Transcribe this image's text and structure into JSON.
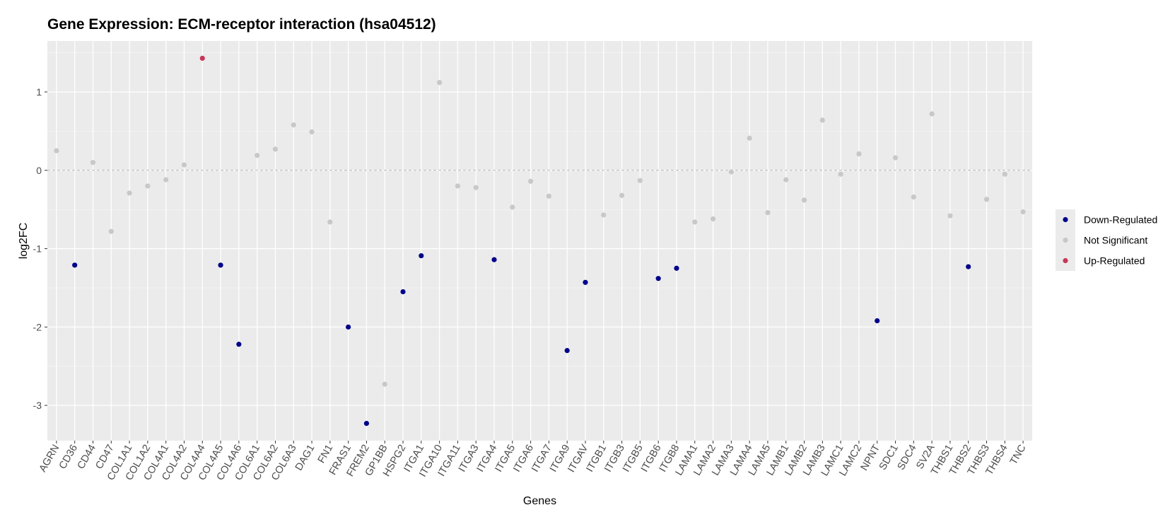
{
  "chart_data": {
    "type": "scatter",
    "title": "Gene Expression: ECM-receptor interaction (hsa04512)",
    "xlabel": "Genes",
    "ylabel": "log2FC",
    "ylim": [
      -3.45,
      1.65
    ],
    "yticks": [
      -3,
      -2,
      -1,
      0,
      1
    ],
    "grid": true,
    "legend_position": "right",
    "reference_line": 0,
    "colors": {
      "Down-Regulated": "#00008b",
      "Not Significant": "#c8c8c8",
      "Up-Regulated": "#c8365a"
    },
    "legend": [
      "Down-Regulated",
      "Not Significant",
      "Up-Regulated"
    ],
    "categories": [
      "AGRN",
      "CD36",
      "CD44",
      "CD47",
      "COL1A1",
      "COL1A2",
      "COL4A1",
      "COL4A2",
      "COL4A4",
      "COL4A5",
      "COL4A6",
      "COL6A1",
      "COL6A2",
      "COL6A3",
      "DAG1",
      "FN1",
      "FRAS1",
      "FREM2",
      "GP1BB",
      "HSPG2",
      "ITGA1",
      "ITGA10",
      "ITGA11",
      "ITGA3",
      "ITGA4",
      "ITGA5",
      "ITGA6",
      "ITGA7",
      "ITGA9",
      "ITGAV",
      "ITGB1",
      "ITGB3",
      "ITGB5",
      "ITGB6",
      "ITGB8",
      "LAMA1",
      "LAMA2",
      "LAMA3",
      "LAMA4",
      "LAMA5",
      "LAMB1",
      "LAMB2",
      "LAMB3",
      "LAMC1",
      "LAMC2",
      "NPNT",
      "SDC1",
      "SDC4",
      "SV2A",
      "THBS1",
      "THBS2",
      "THBS3",
      "THBS4",
      "TNC"
    ],
    "values": [
      0.25,
      -1.21,
      0.1,
      -0.78,
      -0.29,
      -0.2,
      -0.12,
      0.07,
      1.43,
      -1.21,
      -2.22,
      0.19,
      0.27,
      0.58,
      0.49,
      -0.66,
      -2.0,
      -3.23,
      -2.73,
      -1.55,
      -1.09,
      1.12,
      -0.2,
      -0.22,
      -1.14,
      -0.47,
      -0.14,
      -0.33,
      -2.3,
      -1.43,
      -0.57,
      -0.32,
      -0.13,
      -1.38,
      -1.25,
      -0.66,
      -0.62,
      -0.02,
      0.41,
      -0.54,
      -0.12,
      -0.38,
      0.64,
      -0.05,
      0.21,
      -1.92,
      0.16,
      -0.34,
      0.72,
      -0.58,
      -1.23,
      -0.37,
      -0.05,
      -0.53
    ],
    "status": [
      "Not Significant",
      "Down-Regulated",
      "Not Significant",
      "Not Significant",
      "Not Significant",
      "Not Significant",
      "Not Significant",
      "Not Significant",
      "Up-Regulated",
      "Down-Regulated",
      "Down-Regulated",
      "Not Significant",
      "Not Significant",
      "Not Significant",
      "Not Significant",
      "Not Significant",
      "Down-Regulated",
      "Down-Regulated",
      "Not Significant",
      "Down-Regulated",
      "Down-Regulated",
      "Not Significant",
      "Not Significant",
      "Not Significant",
      "Down-Regulated",
      "Not Significant",
      "Not Significant",
      "Not Significant",
      "Down-Regulated",
      "Down-Regulated",
      "Not Significant",
      "Not Significant",
      "Not Significant",
      "Down-Regulated",
      "Down-Regulated",
      "Not Significant",
      "Not Significant",
      "Not Significant",
      "Not Significant",
      "Not Significant",
      "Not Significant",
      "Not Significant",
      "Not Significant",
      "Not Significant",
      "Not Significant",
      "Down-Regulated",
      "Not Significant",
      "Not Significant",
      "Not Significant",
      "Not Significant",
      "Down-Regulated",
      "Not Significant",
      "Not Significant",
      "Not Significant"
    ]
  }
}
